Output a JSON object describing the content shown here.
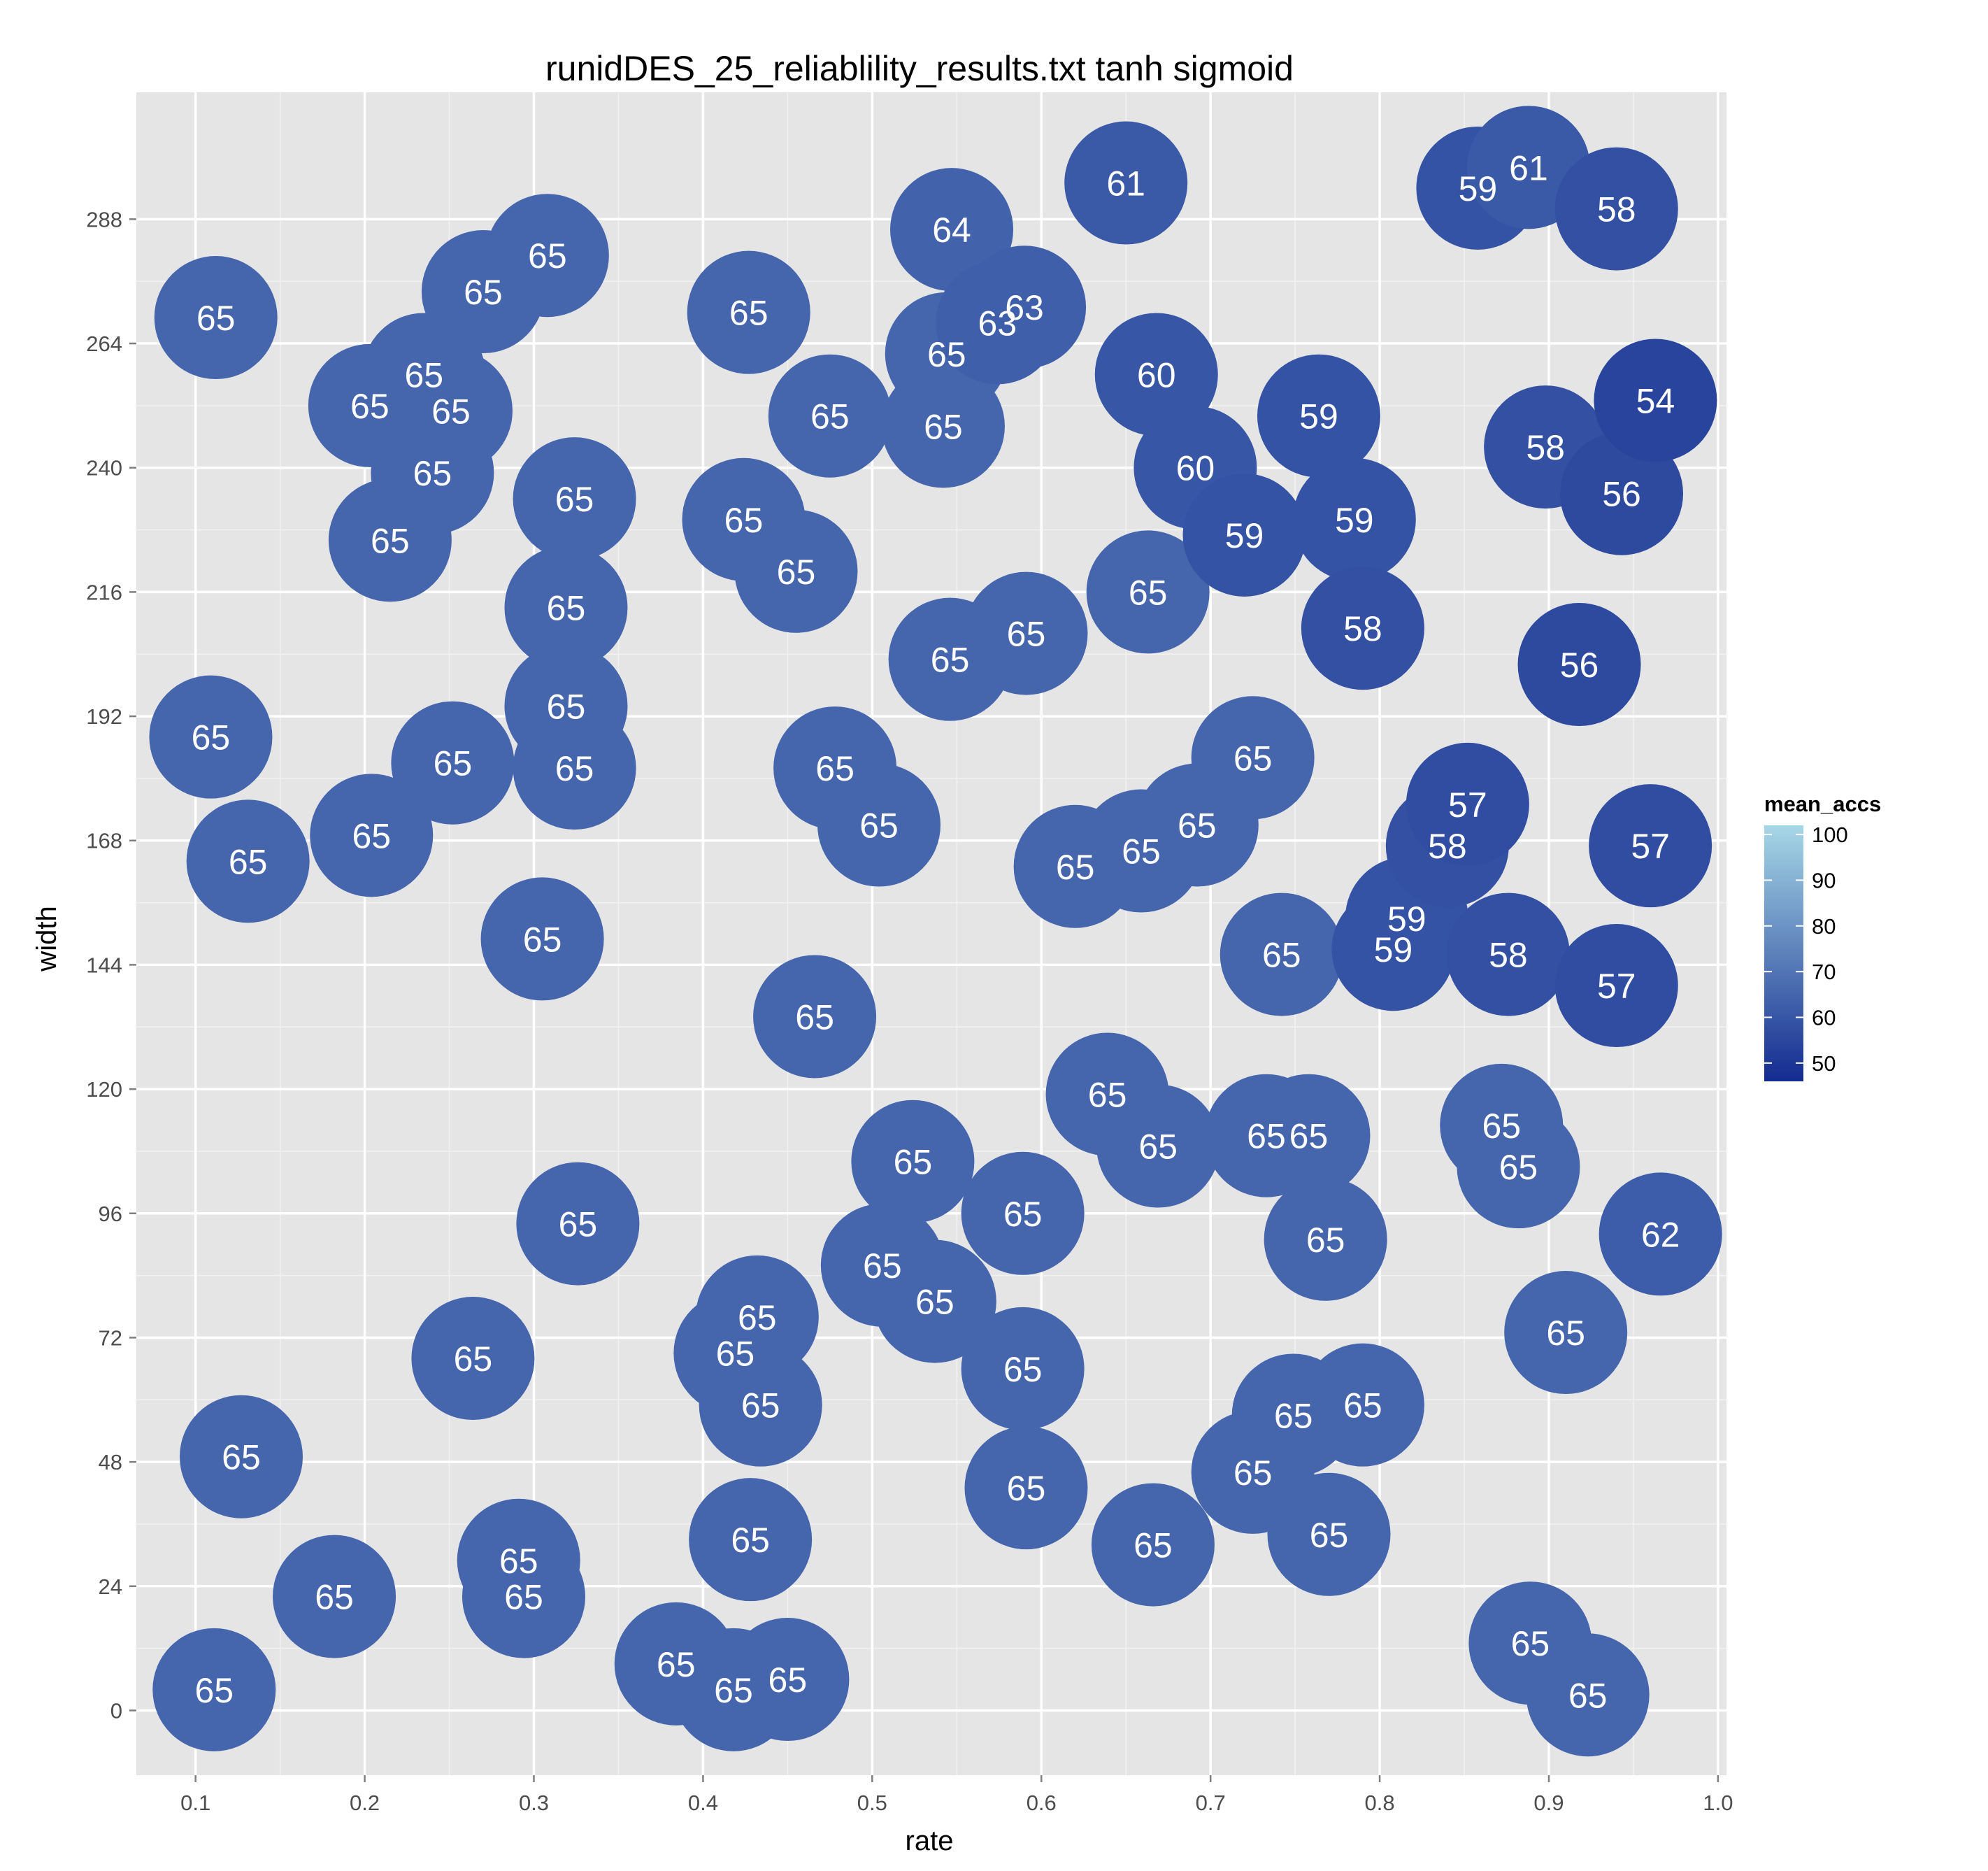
{
  "chart_data": {
    "type": "scatter",
    "title": "runidDES_25_reliablility_results.txt tanh sigmoid",
    "xlabel": "rate",
    "ylabel": "width",
    "xlim": [
      0.065,
      1.005
    ],
    "ylim": [
      -12.5,
      312.5
    ],
    "x_ticks": [
      0.1,
      0.2,
      0.3,
      0.4,
      0.5,
      0.6,
      0.7,
      0.8,
      0.9,
      1.0
    ],
    "x_tick_labels": [
      "0.1",
      "0.2",
      "0.3",
      "0.4",
      "0.5",
      "0.6",
      "0.7",
      "0.8",
      "0.9",
      "1.0"
    ],
    "y_ticks": [
      0,
      24,
      48,
      72,
      96,
      120,
      144,
      168,
      192,
      216,
      240,
      264,
      288
    ],
    "y_tick_labels": [
      "0",
      "24",
      "48",
      "72",
      "96",
      "120",
      "144",
      "168",
      "192",
      "216",
      "240",
      "264",
      "288"
    ],
    "grid": true,
    "background": "#e5e5e5",
    "legend": {
      "title": "mean_accs",
      "position": "right",
      "low": 46,
      "high": 102,
      "low_color": "#132b90",
      "high_color": "#a6d7e6",
      "ticks": [
        50,
        60,
        70,
        80,
        90,
        100
      ],
      "tick_labels": [
        "50",
        "60",
        "70",
        "80",
        "90",
        "100"
      ]
    },
    "points": [
      {
        "x": 0.111,
        "y": 4,
        "label": "65"
      },
      {
        "x": 0.127,
        "y": 49,
        "label": "65"
      },
      {
        "x": 0.109,
        "y": 188,
        "label": "65"
      },
      {
        "x": 0.131,
        "y": 164,
        "label": "65"
      },
      {
        "x": 0.112,
        "y": 269,
        "label": "65"
      },
      {
        "x": 0.182,
        "y": 22,
        "label": "65"
      },
      {
        "x": 0.204,
        "y": 169,
        "label": "65"
      },
      {
        "x": 0.215,
        "y": 226,
        "label": "65"
      },
      {
        "x": 0.203,
        "y": 252,
        "label": "65"
      },
      {
        "x": 0.235,
        "y": 258,
        "label": "65"
      },
      {
        "x": 0.251,
        "y": 251,
        "label": "65"
      },
      {
        "x": 0.24,
        "y": 239,
        "label": "65"
      },
      {
        "x": 0.252,
        "y": 183,
        "label": "65"
      },
      {
        "x": 0.264,
        "y": 68,
        "label": "65"
      },
      {
        "x": 0.27,
        "y": 274,
        "label": "65"
      },
      {
        "x": 0.308,
        "y": 281,
        "label": "65"
      },
      {
        "x": 0.324,
        "y": 234,
        "label": "65"
      },
      {
        "x": 0.319,
        "y": 213,
        "label": "65"
      },
      {
        "x": 0.319,
        "y": 194,
        "label": "65"
      },
      {
        "x": 0.324,
        "y": 182,
        "label": "65"
      },
      {
        "x": 0.305,
        "y": 149,
        "label": "65"
      },
      {
        "x": 0.326,
        "y": 94,
        "label": "65"
      },
      {
        "x": 0.291,
        "y": 29,
        "label": "65"
      },
      {
        "x": 0.294,
        "y": 22,
        "label": "65"
      },
      {
        "x": 0.384,
        "y": 9,
        "label": "65"
      },
      {
        "x": 0.418,
        "y": 4,
        "label": "65"
      },
      {
        "x": 0.45,
        "y": 6,
        "label": "65"
      },
      {
        "x": 0.428,
        "y": 33,
        "label": "65"
      },
      {
        "x": 0.434,
        "y": 59,
        "label": "65"
      },
      {
        "x": 0.419,
        "y": 69,
        "label": "65"
      },
      {
        "x": 0.432,
        "y": 76,
        "label": "65"
      },
      {
        "x": 0.466,
        "y": 134,
        "label": "65"
      },
      {
        "x": 0.427,
        "y": 270,
        "label": "65"
      },
      {
        "x": 0.424,
        "y": 230,
        "label": "65"
      },
      {
        "x": 0.455,
        "y": 220,
        "label": "65"
      },
      {
        "x": 0.475,
        "y": 250,
        "label": "65"
      },
      {
        "x": 0.478,
        "y": 182,
        "label": "65"
      },
      {
        "x": 0.504,
        "y": 171,
        "label": "65"
      },
      {
        "x": 0.506,
        "y": 86,
        "label": "65"
      },
      {
        "x": 0.537,
        "y": 79,
        "label": "65"
      },
      {
        "x": 0.524,
        "y": 106,
        "label": "65"
      },
      {
        "x": 0.546,
        "y": 203,
        "label": "65"
      },
      {
        "x": 0.542,
        "y": 248,
        "label": "65"
      },
      {
        "x": 0.544,
        "y": 262,
        "label": "65"
      },
      {
        "x": 0.547,
        "y": 286,
        "label": "64"
      },
      {
        "x": 0.574,
        "y": 268,
        "label": "63"
      },
      {
        "x": 0.59,
        "y": 271,
        "label": "63"
      },
      {
        "x": 0.591,
        "y": 208,
        "label": "65"
      },
      {
        "x": 0.589,
        "y": 96,
        "label": "65"
      },
      {
        "x": 0.589,
        "y": 66,
        "label": "65"
      },
      {
        "x": 0.591,
        "y": 43,
        "label": "65"
      },
      {
        "x": 0.62,
        "y": 163,
        "label": "65"
      },
      {
        "x": 0.65,
        "y": 295,
        "label": "61"
      },
      {
        "x": 0.639,
        "y": 119,
        "label": "65"
      },
      {
        "x": 0.659,
        "y": 166,
        "label": "65"
      },
      {
        "x": 0.663,
        "y": 216,
        "label": "65"
      },
      {
        "x": 0.668,
        "y": 258,
        "label": "60"
      },
      {
        "x": 0.669,
        "y": 109,
        "label": "65"
      },
      {
        "x": 0.666,
        "y": 32,
        "label": "65"
      },
      {
        "x": 0.692,
        "y": 171,
        "label": "65"
      },
      {
        "x": 0.691,
        "y": 240,
        "label": "60"
      },
      {
        "x": 0.72,
        "y": 227,
        "label": "59"
      },
      {
        "x": 0.725,
        "y": 184,
        "label": "65"
      },
      {
        "x": 0.733,
        "y": 111,
        "label": "65"
      },
      {
        "x": 0.725,
        "y": 46,
        "label": "65"
      },
      {
        "x": 0.742,
        "y": 146,
        "label": "65"
      },
      {
        "x": 0.749,
        "y": 57,
        "label": "65"
      },
      {
        "x": 0.758,
        "y": 111,
        "label": "65"
      },
      {
        "x": 0.768,
        "y": 91,
        "label": "65"
      },
      {
        "x": 0.764,
        "y": 250,
        "label": "59"
      },
      {
        "x": 0.785,
        "y": 230,
        "label": "59"
      },
      {
        "x": 0.79,
        "y": 209,
        "label": "58"
      },
      {
        "x": 0.79,
        "y": 59,
        "label": "65"
      },
      {
        "x": 0.77,
        "y": 34,
        "label": "65"
      },
      {
        "x": 0.808,
        "y": 147,
        "label": "59"
      },
      {
        "x": 0.816,
        "y": 153,
        "label": "59"
      },
      {
        "x": 0.84,
        "y": 167,
        "label": "58"
      },
      {
        "x": 0.852,
        "y": 175,
        "label": "57"
      },
      {
        "x": 0.858,
        "y": 294,
        "label": "59"
      },
      {
        "x": 0.876,
        "y": 146,
        "label": "58"
      },
      {
        "x": 0.872,
        "y": 113,
        "label": "65"
      },
      {
        "x": 0.882,
        "y": 105,
        "label": "65"
      },
      {
        "x": 0.888,
        "y": 298,
        "label": "61"
      },
      {
        "x": 0.898,
        "y": 244,
        "label": "58"
      },
      {
        "x": 0.889,
        "y": 13,
        "label": "65"
      },
      {
        "x": 0.91,
        "y": 73,
        "label": "65"
      },
      {
        "x": 0.918,
        "y": 202,
        "label": "56"
      },
      {
        "x": 0.923,
        "y": 3,
        "label": "65"
      },
      {
        "x": 0.94,
        "y": 290,
        "label": "58"
      },
      {
        "x": 0.94,
        "y": 140,
        "label": "57"
      },
      {
        "x": 0.943,
        "y": 235,
        "label": "56"
      },
      {
        "x": 0.96,
        "y": 167,
        "label": "57"
      },
      {
        "x": 0.966,
        "y": 92,
        "label": "62"
      },
      {
        "x": 0.963,
        "y": 253,
        "label": "54"
      }
    ]
  }
}
